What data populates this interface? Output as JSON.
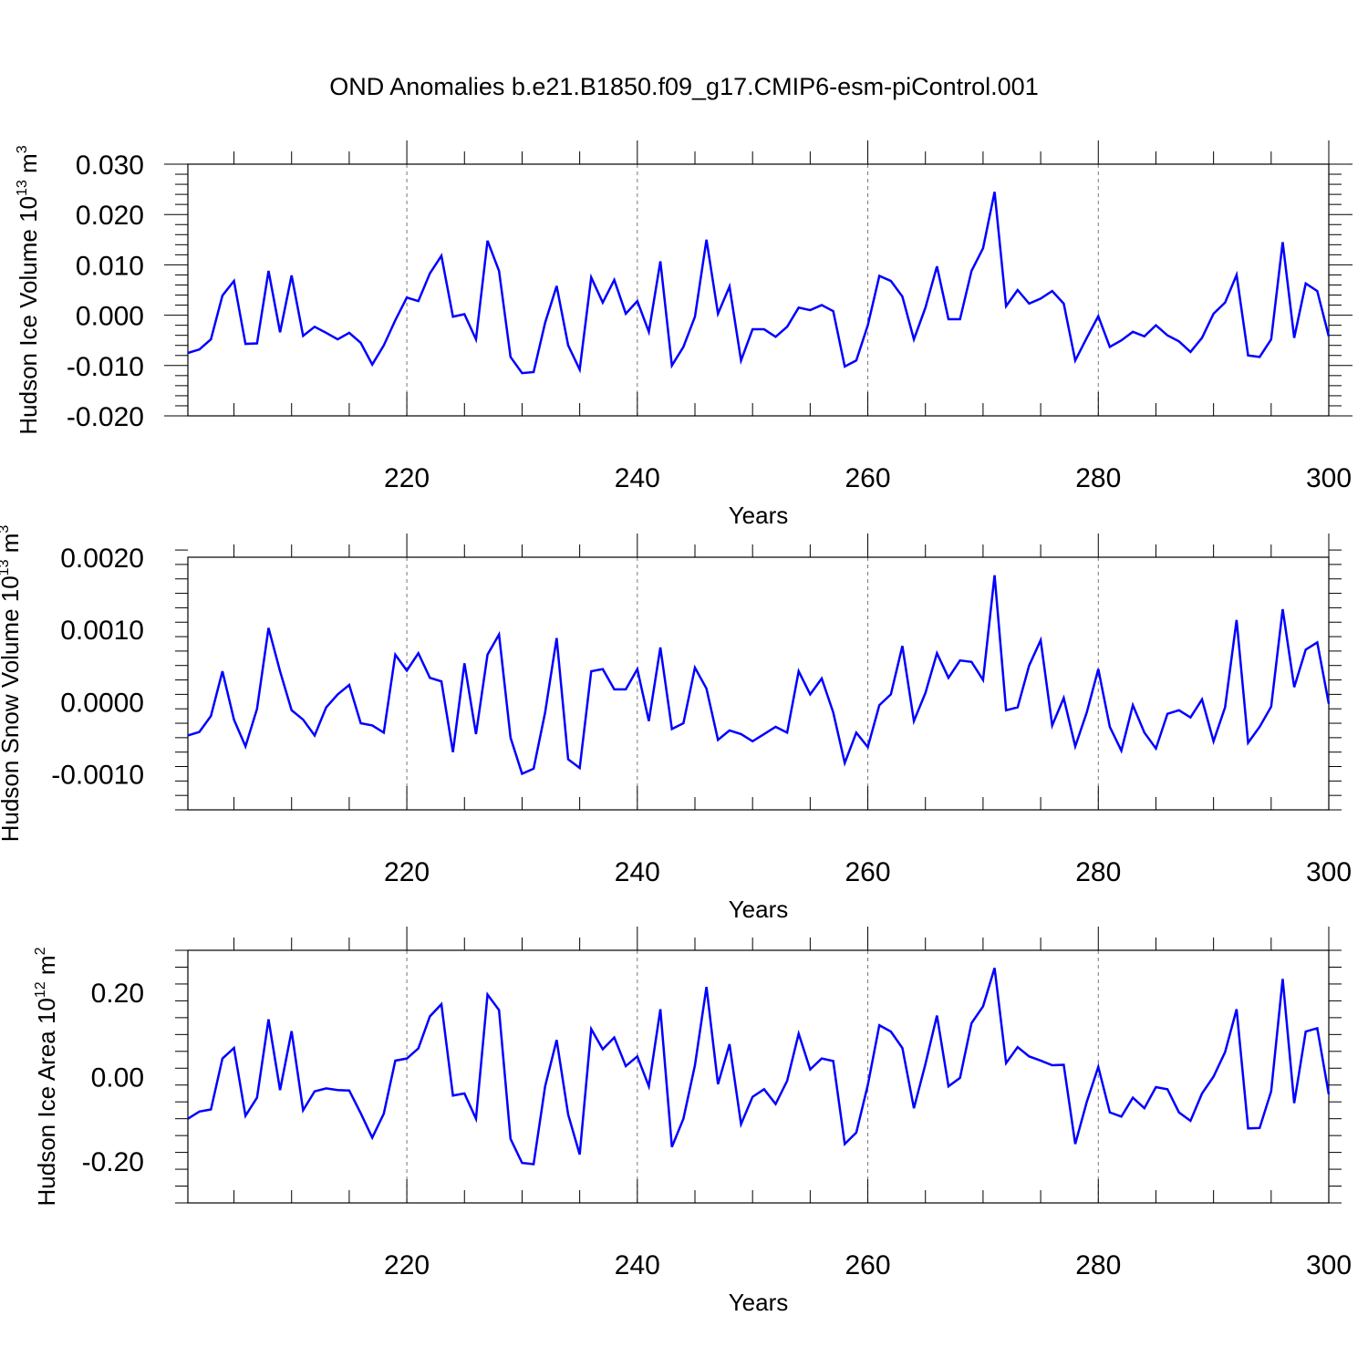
{
  "title": "OND Anomalies b.e21.B1850.f09_g17.CMIP6-esm-piControl.001",
  "chart_data": [
    {
      "type": "line",
      "ylabel": "Hudson Ice Volume 10",
      "ylabel_exp": "13",
      "ylabel_unit": " m",
      "ylabel_unit_exp": "3",
      "xlabel": "Years",
      "xlim": [
        201,
        300
      ],
      "ylim": [
        -0.02,
        0.03
      ],
      "x_ticks": [
        220,
        240,
        260,
        280,
        300
      ],
      "y_ticks": [
        -0.02,
        -0.01,
        0.0,
        0.01,
        0.02,
        0.03
      ],
      "y_tick_labels": [
        "-0.020",
        "-0.010",
        "0.000",
        "0.010",
        "0.020",
        "0.030"
      ],
      "grid": "vertical dashed at major x ticks",
      "x_start": 201,
      "values": [
        -0.0075,
        -0.0068,
        -0.0048,
        0.0039,
        0.0068,
        -0.0057,
        -0.0056,
        0.0088,
        -0.0034,
        0.0079,
        -0.0041,
        -0.0023,
        -0.0035,
        -0.0048,
        -0.0035,
        -0.0055,
        -0.0098,
        -0.006,
        -0.001,
        0.0035,
        0.0028,
        0.0083,
        0.0118,
        -0.0003,
        0.0002,
        -0.0048,
        0.0148,
        0.0088,
        -0.0083,
        -0.0115,
        -0.0113,
        -0.0015,
        0.0058,
        -0.006,
        -0.0108,
        0.0075,
        0.0025,
        0.007,
        0.0003,
        0.0028,
        -0.0033,
        0.0107,
        -0.01,
        -0.0063,
        -0.0003,
        0.015,
        0.0003,
        0.0057,
        -0.009,
        -0.0028,
        -0.0028,
        -0.0043,
        -0.0023,
        0.0015,
        0.001,
        0.002,
        0.0008,
        -0.0102,
        -0.009,
        -0.002,
        0.0078,
        0.0068,
        0.0037,
        -0.0048,
        0.0015,
        0.0097,
        -0.0008,
        -0.0008,
        0.0088,
        0.0133,
        0.0245,
        0.0018,
        0.005,
        0.0023,
        0.0033,
        0.0048,
        0.0023,
        -0.009,
        -0.0045,
        -0.0002,
        -0.0063,
        -0.005,
        -0.0033,
        -0.0042,
        -0.002,
        -0.004,
        -0.0052,
        -0.0073,
        -0.0045,
        0.0003,
        0.0025,
        0.008,
        -0.008,
        -0.0083,
        -0.0048,
        0.0145,
        -0.0045,
        0.0063,
        0.0048,
        -0.0042
      ]
    },
    {
      "type": "line",
      "ylabel": "Hudson Snow Volume 10",
      "ylabel_exp": "13",
      "ylabel_unit": " m",
      "ylabel_unit_exp": "3",
      "xlabel": "Years",
      "xlim": [
        201,
        300
      ],
      "ylim": [
        -0.0015,
        0.002
      ],
      "x_ticks": [
        220,
        240,
        260,
        280,
        300
      ],
      "y_ticks": [
        -0.001,
        0.0,
        0.001,
        0.002
      ],
      "y_tick_labels": [
        "-0.0010",
        "0.0000",
        "0.0010",
        "0.0020"
      ],
      "grid": "vertical dashed at major x ticks",
      "x_start": 201,
      "values": [
        -0.00047,
        -0.00042,
        -0.0002,
        0.00042,
        -0.00025,
        -0.00062,
        -0.0001,
        0.00102,
        0.00042,
        -0.00012,
        -0.00025,
        -0.00047,
        -8e-05,
        0.0001,
        0.00023,
        -0.0003,
        -0.00033,
        -0.00043,
        0.00065,
        0.00043,
        0.00067,
        0.00033,
        0.00028,
        -0.0007,
        0.00053,
        -0.00045,
        0.00065,
        0.00093,
        -0.0005,
        -0.001,
        -0.00093,
        -0.00015,
        0.00088,
        -0.0008,
        -0.00092,
        0.00042,
        0.00045,
        0.00017,
        0.00017,
        0.00045,
        -0.00027,
        0.00075,
        -0.00038,
        -0.0003,
        0.00047,
        0.00018,
        -0.00053,
        -0.0004,
        -0.00045,
        -0.00055,
        -0.00045,
        -0.00035,
        -0.00043,
        0.00042,
        0.0001,
        0.00032,
        -0.00015,
        -0.00085,
        -0.00043,
        -0.00063,
        -5e-05,
        0.0001,
        0.00077,
        -0.00027,
        0.00012,
        0.00067,
        0.00033,
        0.00057,
        0.00055,
        0.0003,
        0.00175,
        -0.00012,
        -8e-05,
        0.0005,
        0.00085,
        -0.00033,
        5e-05,
        -0.00062,
        -0.00015,
        0.00045,
        -0.00035,
        -0.00068,
        -5e-05,
        -0.00043,
        -0.00065,
        -0.00017,
        -0.00012,
        -0.00022,
        3e-05,
        -0.00055,
        -8e-05,
        0.00113,
        -0.00057,
        -0.00035,
        -7e-05,
        0.00128,
        0.0002,
        0.00072,
        0.00082,
        -3e-05
      ]
    },
    {
      "type": "line",
      "ylabel": "Hudson Ice Area 10",
      "ylabel_exp": "12",
      "ylabel_unit": " m",
      "ylabel_unit_exp": "2",
      "xlabel": "Years",
      "xlim": [
        201,
        300
      ],
      "ylim": [
        -0.3,
        0.3
      ],
      "x_ticks": [
        220,
        240,
        260,
        280,
        300
      ],
      "y_ticks": [
        -0.2,
        0.0,
        0.2
      ],
      "y_tick_labels": [
        "-0.20",
        "0.00",
        "0.20"
      ],
      "grid": "vertical dashed at major x ticks",
      "x_start": 201,
      "values": [
        -0.1,
        -0.083,
        -0.078,
        0.043,
        0.068,
        -0.093,
        -0.05,
        0.136,
        -0.032,
        0.108,
        -0.08,
        -0.035,
        -0.028,
        -0.032,
        -0.033,
        -0.087,
        -0.145,
        -0.088,
        0.038,
        0.043,
        0.067,
        0.143,
        0.172,
        -0.045,
        -0.04,
        -0.1,
        0.195,
        0.158,
        -0.148,
        -0.205,
        -0.208,
        -0.023,
        0.087,
        -0.09,
        -0.185,
        0.113,
        0.065,
        0.093,
        0.025,
        0.048,
        -0.023,
        0.16,
        -0.167,
        -0.1,
        0.027,
        0.213,
        -0.018,
        0.077,
        -0.113,
        -0.048,
        -0.03,
        -0.065,
        -0.01,
        0.102,
        0.017,
        0.043,
        0.037,
        -0.16,
        -0.133,
        -0.02,
        0.122,
        0.107,
        0.068,
        -0.075,
        0.03,
        0.145,
        -0.023,
        -0.003,
        0.127,
        0.167,
        0.258,
        0.032,
        0.07,
        0.048,
        0.038,
        0.027,
        0.028,
        -0.16,
        -0.06,
        0.023,
        -0.085,
        -0.095,
        -0.05,
        -0.075,
        -0.025,
        -0.03,
        -0.085,
        -0.105,
        -0.04,
        0.0,
        0.058,
        0.16,
        -0.123,
        -0.122,
        -0.035,
        0.232,
        -0.063,
        0.107,
        0.115,
        -0.042
      ]
    }
  ]
}
